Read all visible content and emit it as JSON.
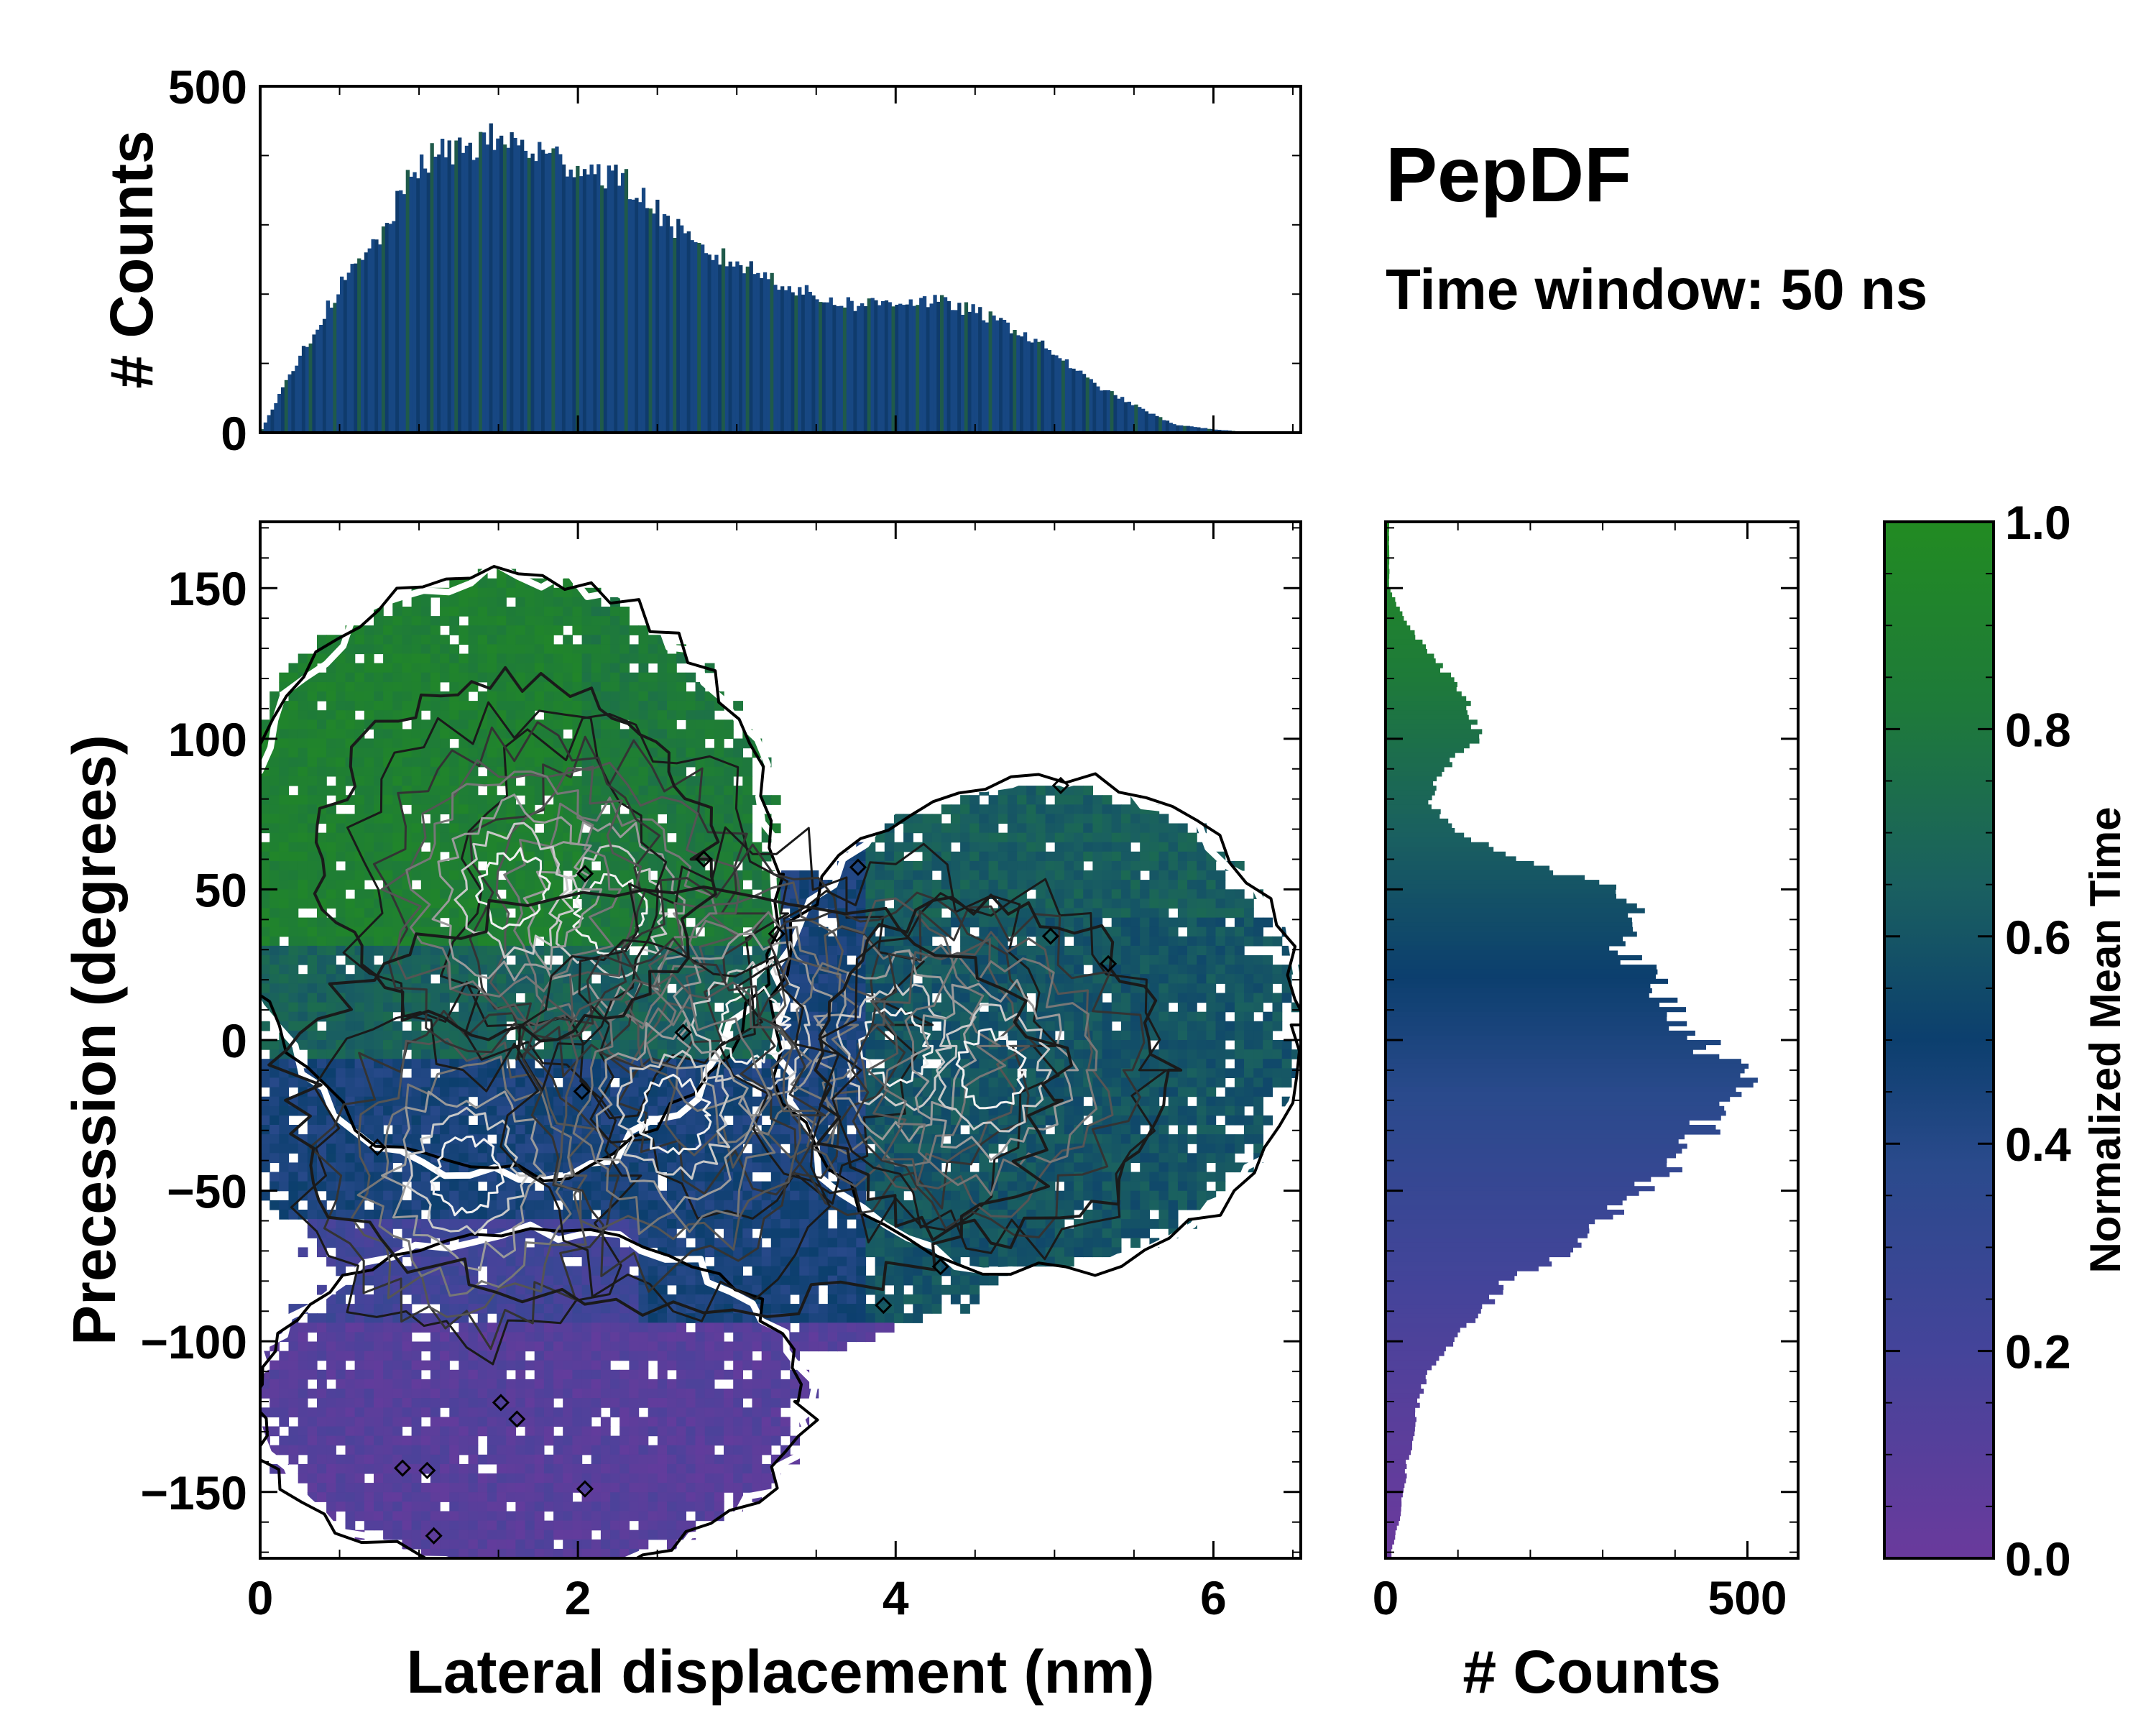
{
  "chart_data": {
    "type": "heatmap",
    "title": "PepDF",
    "subtitle": "Time window: 50 ns",
    "main": {
      "xlabel": "Lateral displacement (nm)",
      "ylabel": "Precession (degrees)",
      "xlim": [
        0,
        6.55
      ],
      "ylim": [
        -172,
        172
      ],
      "xticks": [
        0,
        2,
        4,
        6
      ],
      "xtick_labels": [
        "0",
        "2",
        "4",
        "6"
      ],
      "yticks": [
        150,
        100,
        50,
        0,
        -50,
        -100,
        -150
      ],
      "ytick_labels": [
        "150",
        "100",
        "50",
        "0",
        "−50",
        "−100",
        "−150"
      ],
      "color_by": "Normalized Mean Time",
      "regions": [
        {
          "name": "upper-green",
          "x_range": [
            0.1,
            3.3
          ],
          "y_range": [
            -10,
            150
          ],
          "mean_time": 0.85
        },
        {
          "name": "central-blue",
          "x_range": [
            0.0,
            5.6
          ],
          "y_range": [
            -100,
            40
          ],
          "mean_time": 0.45
        },
        {
          "name": "lower-purple",
          "x_range": [
            0.1,
            3.8
          ],
          "y_range": [
            -172,
            -40
          ],
          "mean_time": 0.12
        },
        {
          "name": "right-teal",
          "x_range": [
            3.6,
            6.5
          ],
          "y_range": [
            -95,
            85
          ],
          "mean_time": 0.6
        }
      ],
      "density_peaks": [
        {
          "x": 1.3,
          "y": -45
        },
        {
          "x": 2.2,
          "y": 42
        },
        {
          "x": 1.6,
          "y": 50
        },
        {
          "x": 3.1,
          "y": 5
        },
        {
          "x": 4.0,
          "y": -2
        },
        {
          "x": 4.6,
          "y": -10
        },
        {
          "x": 2.6,
          "y": -25
        }
      ]
    },
    "top_histogram": {
      "ylabel": "# Counts",
      "ylim": [
        0,
        500
      ],
      "yticks": [
        0,
        500
      ],
      "ytick_labels": [
        "0",
        "500"
      ],
      "x": [
        0,
        0.25,
        0.5,
        0.75,
        1.0,
        1.25,
        1.5,
        1.75,
        2.0,
        2.25,
        2.5,
        2.75,
        3.0,
        3.25,
        3.5,
        3.75,
        4.0,
        4.25,
        4.5,
        4.75,
        5.0,
        5.25,
        5.5,
        5.75,
        6.0,
        6.25,
        6.5
      ],
      "values": [
        0,
        110,
        210,
        280,
        390,
        410,
        425,
        405,
        385,
        370,
        320,
        265,
        245,
        220,
        195,
        185,
        190,
        190,
        175,
        150,
        115,
        70,
        40,
        12,
        5,
        0,
        0
      ]
    },
    "right_histogram": {
      "xlabel": "# Counts",
      "xlim": [
        0,
        570
      ],
      "xticks": [
        0,
        500
      ],
      "xtick_labels": [
        "0",
        "500"
      ],
      "y": [
        150,
        140,
        130,
        120,
        110,
        100,
        90,
        80,
        70,
        60,
        50,
        40,
        30,
        20,
        10,
        0,
        -10,
        -20,
        -30,
        -40,
        -50,
        -60,
        -70,
        -80,
        -90,
        -100,
        -110,
        -120,
        -130,
        -140,
        -150,
        -160,
        -170
      ],
      "values": [
        5,
        25,
        55,
        90,
        120,
        130,
        80,
        60,
        90,
        180,
        320,
        350,
        330,
        370,
        395,
        430,
        490,
        470,
        440,
        400,
        350,
        300,
        250,
        170,
        130,
        90,
        60,
        45,
        40,
        30,
        25,
        18,
        8
      ]
    },
    "colorbar": {
      "label": "Normalized Mean Time",
      "range": [
        0,
        1
      ],
      "ticks": [
        1.0,
        0.8,
        0.6,
        0.4,
        0.2,
        0.0
      ],
      "tick_labels": [
        "1.0",
        "0.8",
        "0.6",
        "0.4",
        "0.2",
        "0.0"
      ],
      "colors": [
        "#6a3a9c",
        "#44449a",
        "#2a4a8c",
        "#0c3f6e",
        "#1a6060",
        "#1e7a3a",
        "#228b22"
      ]
    }
  }
}
